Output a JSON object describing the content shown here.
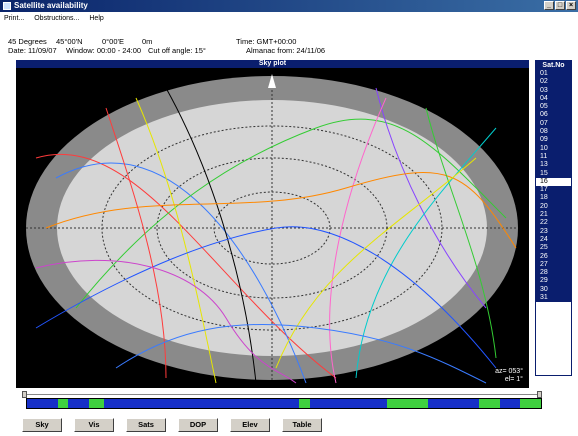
{
  "window": {
    "title": "Satellite availability",
    "buttons": [
      "_",
      "□",
      "×"
    ]
  },
  "menu": [
    "Print...",
    "Obstructions...",
    "Help"
  ],
  "info": {
    "lat": "45 Degrees",
    "coord_lat": "45°00'N",
    "coord_lon": "0°00'E",
    "height": "0m",
    "time": "Time: GMT+00:00",
    "date": "Date: 11/09/07",
    "window": "Window: 00:00 - 24:00",
    "cutoff": "Cut off angle: 15°",
    "almanac": "Almanac from: 24/11/06"
  },
  "plot": {
    "title": "Sky plot",
    "readout_az": "az= 053°",
    "readout_el": "el=  1°"
  },
  "satlist": {
    "header": "Sat.No",
    "items": [
      "01",
      "02",
      "03",
      "04",
      "05",
      "06",
      "07",
      "08",
      "09",
      "10",
      "11",
      "13",
      "15",
      "16",
      "17",
      "18",
      "20",
      "21",
      "22",
      "23",
      "24",
      "25",
      "26",
      "27",
      "28",
      "29",
      "30",
      "31"
    ],
    "selected": "16"
  },
  "timeline": {
    "segments": [
      {
        "w": 6,
        "on": false
      },
      {
        "w": 2,
        "on": true
      },
      {
        "w": 4,
        "on": false
      },
      {
        "w": 3,
        "on": true
      },
      {
        "w": 38,
        "on": false
      },
      {
        "w": 2,
        "on": true
      },
      {
        "w": 15,
        "on": false
      },
      {
        "w": 8,
        "on": true
      },
      {
        "w": 10,
        "on": false
      },
      {
        "w": 4,
        "on": true
      },
      {
        "w": 4,
        "on": false
      },
      {
        "w": 4,
        "on": true
      }
    ]
  },
  "buttons": [
    "Sky",
    "Vis",
    "Sats",
    "DOP",
    "Elev",
    "Table"
  ],
  "colors": {
    "accent": "#0a1e6e",
    "plot_bg": "#000000",
    "available": "#3fd03f",
    "unavailable": "#1730c8"
  }
}
